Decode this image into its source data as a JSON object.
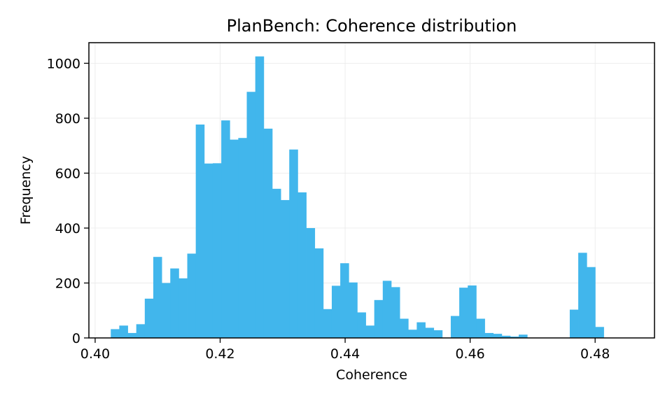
{
  "chart_data": {
    "type": "bar",
    "title": "PlanBench: Coherence distribution",
    "xlabel": "Coherence",
    "ylabel": "Frequency",
    "xlim": [
      0.399,
      0.4895
    ],
    "ylim": [
      0,
      1075
    ],
    "x_ticks": [
      0.4,
      0.42,
      0.44,
      0.46,
      0.48
    ],
    "x_tick_labels": [
      "0.40",
      "0.42",
      "0.44",
      "0.46",
      "0.48"
    ],
    "y_ticks": [
      0,
      200,
      400,
      600,
      800,
      1000
    ],
    "y_tick_labels": [
      "0",
      "200",
      "400",
      "600",
      "800",
      "1000"
    ],
    "grid": true,
    "bar_color": "#41b6ec",
    "bin_start": 0.4025,
    "bin_width": 0.00136,
    "values": [
      32,
      45,
      18,
      50,
      143,
      295,
      200,
      253,
      217,
      307,
      777,
      635,
      636,
      792,
      722,
      728,
      896,
      1025,
      762,
      543,
      502,
      686,
      530,
      400,
      326,
      105,
      190,
      272,
      202,
      93,
      45,
      138,
      208,
      185,
      70,
      30,
      57,
      37,
      28,
      0,
      80,
      183,
      191,
      70,
      18,
      15,
      8,
      5,
      12,
      0,
      0,
      0,
      0,
      0,
      103,
      310,
      258,
      40
    ]
  }
}
